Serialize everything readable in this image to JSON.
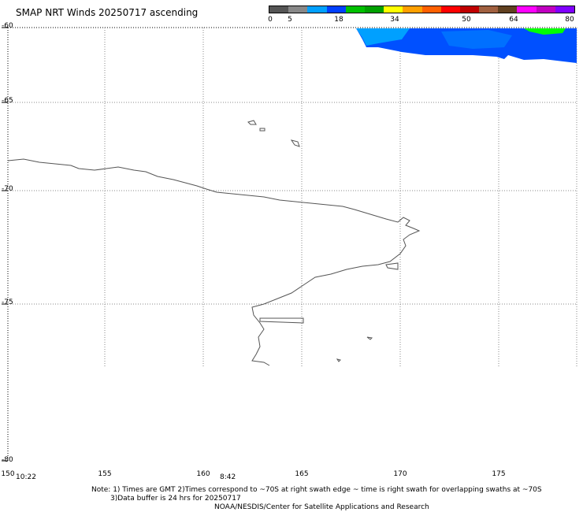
{
  "title": "SMAP NRT Winds 20250717 ascending",
  "colorbar": {
    "labels": [
      "0",
      "5",
      "18",
      "34",
      "50",
      "64",
      "80"
    ],
    "colors": [
      "#555555",
      "#888888",
      "#00a0ff",
      "#0040ff",
      "#00c000",
      "#00a000",
      "#ffff00",
      "#ffa000",
      "#ff6000",
      "#ff0000",
      "#c00000",
      "#a06040",
      "#604020",
      "#ff00ff",
      "#c000c0",
      "#8000ff"
    ]
  },
  "axes": {
    "lat_labels": [
      "-60",
      "-65",
      "-70",
      "-75",
      "-80"
    ],
    "lon_labels": [
      "150",
      "155",
      "160",
      "165",
      "170",
      "175"
    ]
  },
  "times": [
    "10:22",
    "8:42"
  ],
  "notes": {
    "line1": "Note: 1) Times are GMT 2)Times correspond to ~70S at right swath edge ~ time is right swath for overlapping swaths at ~70S",
    "line2": "3)Data buffer is 24 hrs for 20250717",
    "line3": "NOAA/NESDIS/Center for Satellite Applications and Research"
  },
  "legend_colors": {
    "swath_blue": "#0050ff",
    "swath_light_blue": "#00a0ff",
    "swath_green": "#00ff00",
    "coast": "#555555",
    "grid": "#888888"
  }
}
